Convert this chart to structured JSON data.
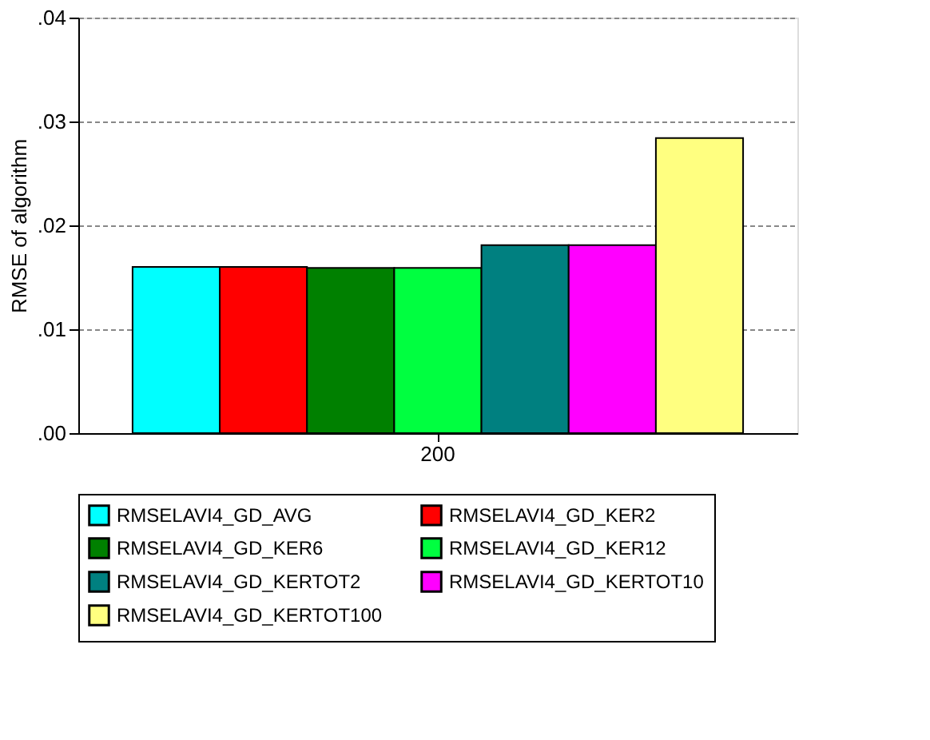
{
  "chart_data": {
    "type": "bar",
    "ylabel": "RMSE of algorithm",
    "categories": [
      "200"
    ],
    "series": [
      {
        "name": "RMSELAVI4_GD_AVG",
        "color": "#00ffff",
        "values": [
          0.016
        ]
      },
      {
        "name": "RMSELAVI4_GD_KER2",
        "color": "#ff0000",
        "values": [
          0.016
        ]
      },
      {
        "name": "RMSELAVI4_GD_KER6",
        "color": "#008000",
        "values": [
          0.0159
        ]
      },
      {
        "name": "RMSELAVI4_GD_KER12",
        "color": "#00ff40",
        "values": [
          0.0159
        ]
      },
      {
        "name": "RMSELAVI4_GD_KERTOT2",
        "color": "#008080",
        "values": [
          0.0181
        ]
      },
      {
        "name": "RMSELAVI4_GD_KERTOT10",
        "color": "#ff00ff",
        "values": [
          0.0181
        ]
      },
      {
        "name": "RMSELAVI4_GD_KERTOT100",
        "color": "#ffff80",
        "values": [
          0.0284
        ]
      }
    ],
    "ylim": [
      0,
      0.04
    ],
    "yticks": [
      {
        "value": 0,
        "label": ".00"
      },
      {
        "value": 0.01,
        "label": ".01"
      },
      {
        "value": 0.02,
        "label": ".02"
      },
      {
        "value": 0.03,
        "label": ".03"
      },
      {
        "value": 0.04,
        "label": ".04"
      }
    ],
    "grid": "y",
    "legend": "bottom"
  }
}
